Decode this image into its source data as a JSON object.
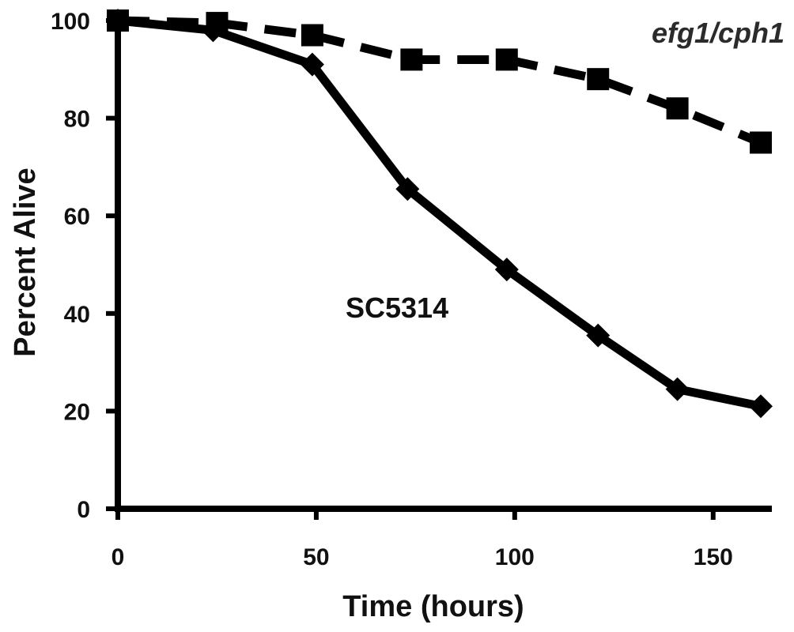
{
  "chart_data": {
    "type": "line",
    "title": "",
    "xlabel": "Time (hours)",
    "ylabel": "Percent Alive",
    "xlim": [
      0,
      163
    ],
    "ylim": [
      0,
      100
    ],
    "x_ticks": [
      "0",
      "50",
      "100",
      "150"
    ],
    "y_ticks": [
      "0",
      "20",
      "40",
      "60",
      "80",
      "100"
    ],
    "grid": false,
    "legend": "none",
    "series": [
      {
        "name": "SC5314",
        "line_style": "solid",
        "marker": "diamond",
        "color": "#000000",
        "x": [
          0,
          24,
          49,
          73,
          98,
          121,
          141,
          162
        ],
        "y": [
          100,
          98,
          91,
          65.5,
          49,
          35.5,
          24.5,
          21
        ]
      },
      {
        "name": "efg1/cph1",
        "line_style": "dashed",
        "marker": "square",
        "color": "#000000",
        "x": [
          0,
          25,
          49,
          74,
          98,
          121,
          141,
          162
        ],
        "y": [
          100,
          99.5,
          97,
          92,
          92,
          88,
          82,
          75
        ]
      }
    ]
  }
}
